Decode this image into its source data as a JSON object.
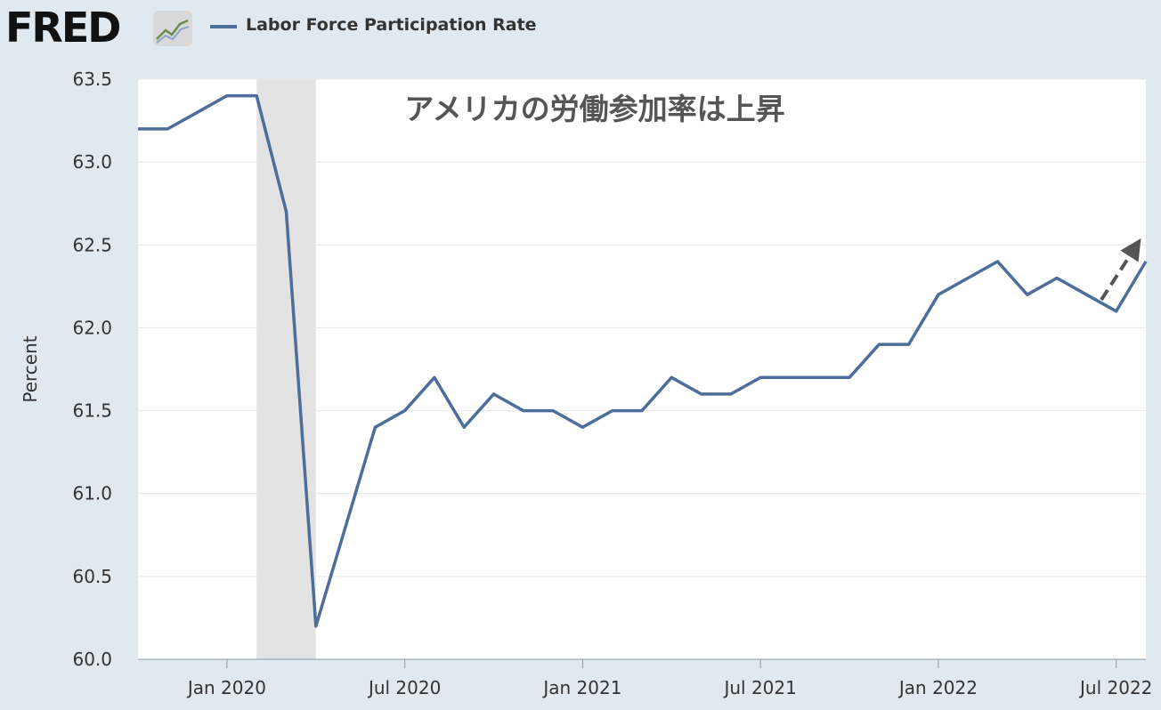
{
  "header": {
    "logo": "FRED",
    "legend_label": "Labor Force Participation Rate"
  },
  "colors": {
    "series": "#4d6d9a",
    "background": "#e1e9f0",
    "plot": "#ffffff",
    "recession": "#e3e3e3",
    "annotation": "#555555"
  },
  "chart_data": {
    "type": "line",
    "title": "",
    "ylabel": "Percent",
    "ylim": [
      60.0,
      63.5
    ],
    "yticks": [
      "60.0",
      "60.5",
      "61.0",
      "61.5",
      "62.0",
      "62.5",
      "63.0",
      "63.5"
    ],
    "xlim": [
      "2019-10",
      "2022-08"
    ],
    "xticks": [
      {
        "date": "2020-01",
        "label": "Jan 2020"
      },
      {
        "date": "2020-07",
        "label": "Jul 2020"
      },
      {
        "date": "2021-01",
        "label": "Jan 2021"
      },
      {
        "date": "2021-07",
        "label": "Jul 2021"
      },
      {
        "date": "2022-01",
        "label": "Jan 2022"
      },
      {
        "date": "2022-07",
        "label": "Jul 2022"
      }
    ],
    "recession": {
      "start": "2020-02",
      "end": "2020-04"
    },
    "series": [
      {
        "name": "Labor Force Participation Rate",
        "x": [
          "2019-10",
          "2019-11",
          "2019-12",
          "2020-01",
          "2020-02",
          "2020-03",
          "2020-04",
          "2020-05",
          "2020-06",
          "2020-07",
          "2020-08",
          "2020-09",
          "2020-10",
          "2020-11",
          "2020-12",
          "2021-01",
          "2021-02",
          "2021-03",
          "2021-04",
          "2021-05",
          "2021-06",
          "2021-07",
          "2021-08",
          "2021-09",
          "2021-10",
          "2021-11",
          "2021-12",
          "2022-01",
          "2022-02",
          "2022-03",
          "2022-04",
          "2022-05",
          "2022-06",
          "2022-07",
          "2022-08"
        ],
        "y": [
          63.2,
          63.2,
          63.3,
          63.4,
          63.4,
          62.7,
          60.2,
          60.8,
          61.4,
          61.5,
          61.7,
          61.4,
          61.6,
          61.5,
          61.5,
          61.4,
          61.5,
          61.5,
          61.7,
          61.6,
          61.6,
          61.7,
          61.7,
          61.7,
          61.7,
          61.9,
          61.9,
          62.2,
          62.3,
          62.4,
          62.2,
          62.3,
          62.2,
          62.1,
          62.4
        ]
      }
    ],
    "annotations": [
      {
        "text": "アメリカの労働参加率は上昇"
      }
    ]
  }
}
